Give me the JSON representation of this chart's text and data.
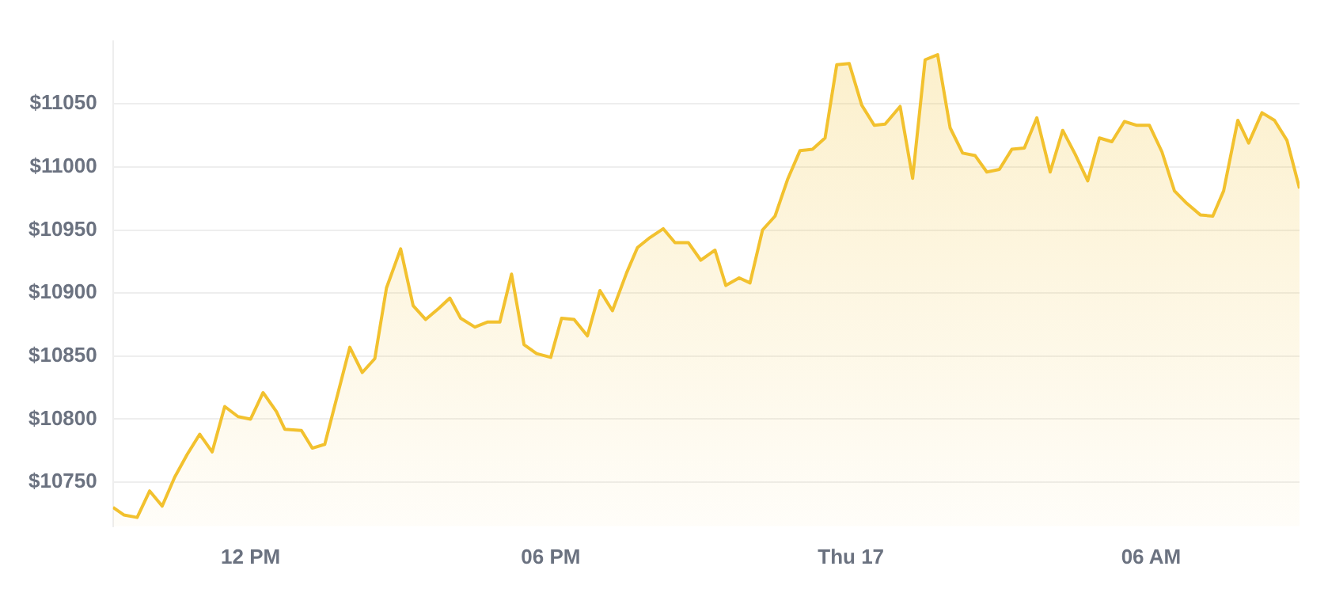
{
  "chart_data": {
    "type": "area",
    "x": [
      "--09-16T09:15",
      "--09-16T09:28",
      "--09-16T09:44",
      "--09-16T09:59",
      "--09-16T10:14",
      "--09-16T10:29",
      "--09-16T10:44",
      "--09-16T10:59",
      "--09-16T11:14",
      "--09-16T11:29",
      "--09-16T11:45",
      "--09-16T12:00",
      "--09-16T12:15",
      "--09-16T12:31",
      "--09-16T12:41",
      "--09-16T13:01",
      "--09-16T13:14",
      "--09-16T13:29",
      "--09-16T13:59",
      "--09-16T14:14",
      "--09-16T14:29",
      "--09-16T14:43",
      "--09-16T15:00",
      "--09-16T15:15",
      "--09-16T15:30",
      "--09-16T15:46",
      "--09-16T15:59",
      "--09-16T16:12",
      "--09-16T16:29",
      "--09-16T16:44",
      "--09-16T16:59",
      "--09-16T17:13",
      "--09-16T17:28",
      "--09-16T17:43",
      "--09-16T18:00",
      "--09-16T18:13",
      "--09-16T18:28",
      "--09-16T18:44",
      "--09-16T18:59",
      "--09-16T19:14",
      "--09-16T19:31",
      "--09-16T19:44",
      "--09-16T19:59",
      "--09-16T20:15",
      "--09-16T20:29",
      "--09-16T20:45",
      "--09-16T21:00",
      "--09-16T21:17",
      "--09-16T21:30",
      "--09-16T21:46",
      "--09-16T21:59",
      "--09-16T22:14",
      "--09-16T22:29",
      "--09-16T22:44",
      "--09-16T22:59",
      "--09-16T23:14",
      "--09-16T23:29",
      "--09-16T23:43",
      "--09-16T23:58",
      "--09-17T00:13",
      "--09-17T00:28",
      "--09-17T00:41",
      "--09-17T00:59",
      "--09-17T01:14",
      "--09-17T01:29",
      "--09-17T01:44",
      "--09-17T01:59",
      "--09-17T02:14",
      "--09-17T02:29",
      "--09-17T02:43",
      "--09-17T02:58",
      "--09-17T03:13",
      "--09-17T03:28",
      "--09-17T03:43",
      "--09-17T03:59",
      "--09-17T04:14",
      "--09-17T04:29",
      "--09-17T04:44",
      "--09-17T04:58",
      "--09-17T05:13",
      "--09-17T05:28",
      "--09-17T05:43",
      "--09-17T05:58",
      "--09-17T06:13",
      "--09-17T06:28",
      "--09-17T06:43",
      "--09-17T06:59",
      "--09-17T07:14",
      "--09-17T07:27",
      "--09-17T07:44",
      "--09-17T07:57",
      "--09-17T08:13",
      "--09-17T08:28",
      "--09-17T08:43",
      "--09-17T08:58"
    ],
    "series": [
      {
        "color": "#f2c12e",
        "values": [
          10730,
          10724,
          10722,
          10743,
          10731,
          10754,
          10772,
          10788,
          10774,
          10810,
          10802,
          10800,
          10821,
          10806,
          10792,
          10791,
          10777,
          10780,
          10857,
          10837,
          10848,
          10904,
          10935,
          10890,
          10879,
          10888,
          10896,
          10880,
          10873,
          10877,
          10877,
          10915,
          10859,
          10852,
          10849,
          10880,
          10879,
          10866,
          10902,
          10886,
          10916,
          10936,
          10944,
          10951,
          10940,
          10940,
          10926,
          10934,
          10906,
          10912,
          10908,
          10950,
          10961,
          10990,
          11013,
          11014,
          11023,
          11081,
          11082,
          11049,
          11033,
          11034,
          11048,
          10991,
          11085,
          11089,
          11031,
          11011,
          11009,
          10996,
          10998,
          11014,
          11015,
          11039,
          10996,
          11029,
          11010,
          10989,
          11023,
          11020,
          11036,
          11033,
          11033,
          11012,
          10981,
          10971,
          10962,
          10961,
          10981,
          11037,
          11019,
          11043,
          11037,
          11021,
          10983
        ]
      }
    ],
    "xlim": [
      "--09-16T09:15",
      "--09-17T08:58"
    ],
    "xticks": [
      {
        "value": "--09-16T12:00",
        "label": "12 PM"
      },
      {
        "value": "--09-16T18:00",
        "label": "06 PM"
      },
      {
        "value": "--09-17T00:00",
        "label": "Thu 17"
      },
      {
        "value": "--09-17T06:00",
        "label": "06 AM"
      }
    ],
    "ylim": [
      10715,
      11100
    ],
    "yticks": [
      {
        "value": 10750,
        "label": "$10750"
      },
      {
        "value": 10800,
        "label": "$10800"
      },
      {
        "value": 10850,
        "label": "$10850"
      },
      {
        "value": 10900,
        "label": "$10900"
      },
      {
        "value": 10950,
        "label": "$10950"
      },
      {
        "value": 11000,
        "label": "$11000"
      },
      {
        "value": 11050,
        "label": "$11050"
      }
    ],
    "grid": "y",
    "legend": false,
    "marker": "none",
    "line_style": "solid"
  }
}
